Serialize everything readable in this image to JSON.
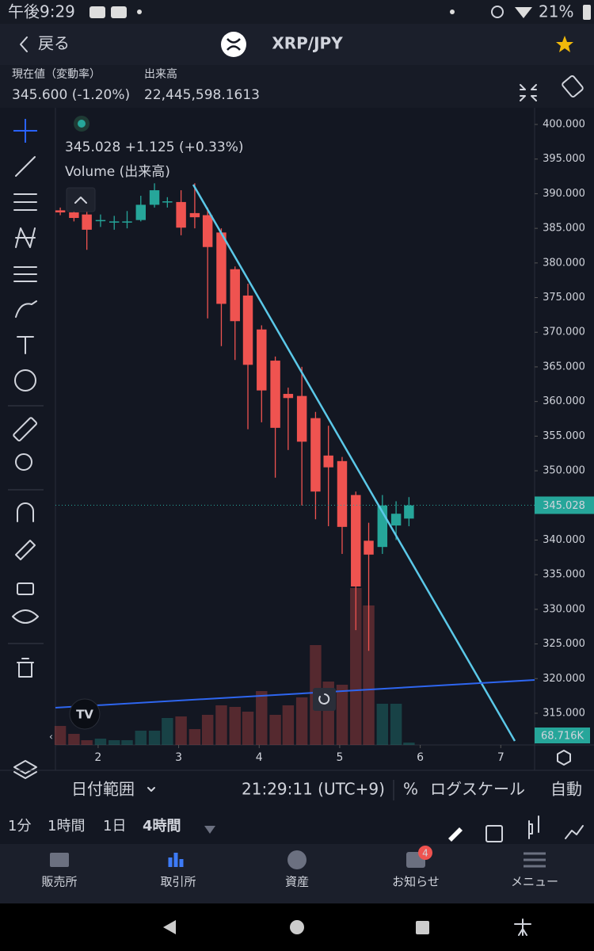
{
  "status_bar": {
    "time": "午後9:29",
    "battery": "21%"
  },
  "header": {
    "back": "戻る",
    "title": "XRP/JPY"
  },
  "summary": {
    "price_label": "現在値（変動率）",
    "price": "345.600 (-1.20%)",
    "volume_label": "出来高",
    "volume": "22,445,598.1613"
  },
  "chart_data": {
    "type": "candlestick",
    "legend": "345.028 +1.125 (+0.33%)",
    "volume_title": "Volume (出来高)",
    "x": [
      1.53,
      1.7,
      1.86,
      2.03,
      2.2,
      2.36,
      2.53,
      2.7,
      2.86,
      3.03,
      3.2,
      3.36,
      3.53,
      3.7,
      3.86,
      4.03,
      4.2,
      4.36,
      4.53,
      4.7,
      4.86,
      5.03,
      5.2,
      5.36,
      5.53,
      5.7,
      5.86
    ],
    "open": [
      387.6,
      387.3,
      387.0,
      386.2,
      386.0,
      386.0,
      386.2,
      388.4,
      388.9,
      388.8,
      387.2,
      386.9,
      384.4,
      379.1,
      375.3,
      370.4,
      365.9,
      361.1,
      360.8,
      357.6,
      352.2,
      351.4,
      346.5,
      339.9,
      339.0,
      342.1,
      343.1
    ],
    "high": [
      388.0,
      387.6,
      387.5,
      387.0,
      386.8,
      387.5,
      389.7,
      391.5,
      389.5,
      390.5,
      391.5,
      388.0,
      385.0,
      379.5,
      377.0,
      371.0,
      366.5,
      362.0,
      365.0,
      358.5,
      356.5,
      352.0,
      347.0,
      342.5,
      346.5,
      345.6,
      346.2
    ],
    "low": [
      386.9,
      386.0,
      381.9,
      385.2,
      384.8,
      385.0,
      386.0,
      388.0,
      388.0,
      384.0,
      385.0,
      372.0,
      368.0,
      366.0,
      356.0,
      357.0,
      349.0,
      353.0,
      345.0,
      343.0,
      342.0,
      338.0,
      327.0,
      324.0,
      338.0,
      340.0,
      342.0
    ],
    "close": [
      387.3,
      386.5,
      384.8,
      386.2,
      386.0,
      386.0,
      388.4,
      390.5,
      388.9,
      385.1,
      386.6,
      382.3,
      374.1,
      371.6,
      365.3,
      361.6,
      356.2,
      360.5,
      354.2,
      347.0,
      350.5,
      341.9,
      333.3,
      337.9,
      345.0,
      343.8,
      345.0
    ],
    "volume": [
      545,
      318,
      136,
      182,
      136,
      136,
      409,
      409,
      773,
      818,
      455,
      864,
      1136,
      1091,
      955,
      1545,
      864,
      1136,
      1364,
      2864,
      1818,
      1727,
      4500,
      4000,
      1182,
      1182,
      68.716
    ],
    "vlim": [
      0,
      5000
    ],
    "last_price": 345.028,
    "last_volume": {
      "value": 68.716,
      "label": "68.716K"
    },
    "up_color": "#26a69a",
    "down_color": "#ef5350",
    "xlim": [
      1.47,
      7.42
    ],
    "xticks": [
      2,
      3,
      4,
      5,
      6,
      7
    ],
    "ylim": [
      310.42,
      402.29
    ],
    "yticks": [
      {
        "value": 400,
        "label": "400.000"
      },
      {
        "value": 395,
        "label": "395.000"
      },
      {
        "value": 390,
        "label": "390.000"
      },
      {
        "value": 385,
        "label": "385.000"
      },
      {
        "value": 380,
        "label": "380.000"
      },
      {
        "value": 375,
        "label": "375.000"
      },
      {
        "value": 370,
        "label": "370.000"
      },
      {
        "value": 365,
        "label": "365.000"
      },
      {
        "value": 360,
        "label": "360.000"
      },
      {
        "value": 355,
        "label": "355.000"
      },
      {
        "value": 350,
        "label": "350.000"
      },
      {
        "value": 345,
        "label": "345.000"
      },
      {
        "value": 340,
        "label": "340.000"
      },
      {
        "value": 335,
        "label": "335.000"
      },
      {
        "value": 330,
        "label": "330.000"
      },
      {
        "value": 325,
        "label": "325.000"
      },
      {
        "value": 320,
        "label": "320.000"
      },
      {
        "value": 315,
        "label": "315.000"
      }
    ]
  },
  "chart_footer": {
    "date_range": "日付範囲",
    "clock": "21:29:11 (UTC+9)",
    "percent": "%",
    "log_scale": "ログスケール",
    "auto": "自動"
  },
  "intervals": [
    "1分",
    "1時間",
    "1日",
    "4時間"
  ],
  "nav": [
    "販売所",
    "取引所",
    "資産",
    "お知らせ",
    "メニュー"
  ],
  "notification_badge": "4"
}
